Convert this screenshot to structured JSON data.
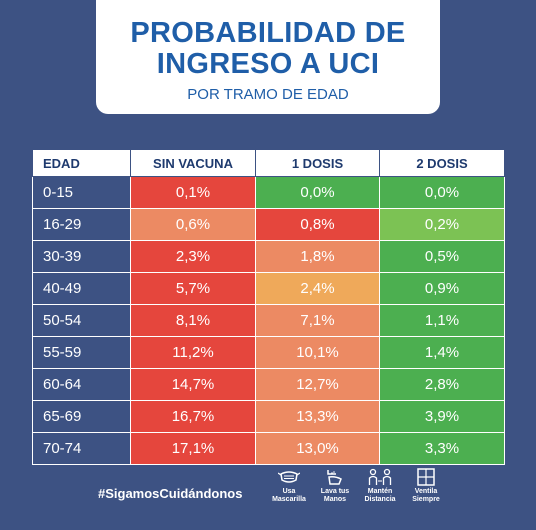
{
  "header": {
    "title_line1": "PROBABILIDAD DE",
    "title_line2": "INGRESO A UCI",
    "subtitle": "POR TRAMO DE EDAD"
  },
  "table": {
    "headers": [
      "EDAD",
      "SIN VACUNA",
      "1 DOSIS",
      "2 DOSIS"
    ],
    "rows": [
      {
        "age": "0-15",
        "cells": [
          {
            "value": "0,1%",
            "color": "#e5463d"
          },
          {
            "value": "0,0%",
            "color": "#4caf50"
          },
          {
            "value": "0,0%",
            "color": "#4caf50"
          }
        ]
      },
      {
        "age": "16-29",
        "cells": [
          {
            "value": "0,6%",
            "color": "#ec8a63"
          },
          {
            "value": "0,8%",
            "color": "#e5463d"
          },
          {
            "value": "0,2%",
            "color": "#7cc254"
          }
        ]
      },
      {
        "age": "30-39",
        "cells": [
          {
            "value": "2,3%",
            "color": "#e5463d"
          },
          {
            "value": "1,8%",
            "color": "#ec8a63"
          },
          {
            "value": "0,5%",
            "color": "#4caf50"
          }
        ]
      },
      {
        "age": "40-49",
        "cells": [
          {
            "value": "5,7%",
            "color": "#e5463d"
          },
          {
            "value": "2,4%",
            "color": "#efa95a"
          },
          {
            "value": "0,9%",
            "color": "#4caf50"
          }
        ]
      },
      {
        "age": "50-54",
        "cells": [
          {
            "value": "8,1%",
            "color": "#e5463d"
          },
          {
            "value": "7,1%",
            "color": "#ec8a63"
          },
          {
            "value": "1,1%",
            "color": "#4caf50"
          }
        ]
      },
      {
        "age": "55-59",
        "cells": [
          {
            "value": "11,2%",
            "color": "#e5463d"
          },
          {
            "value": "10,1%",
            "color": "#ec8a63"
          },
          {
            "value": "1,4%",
            "color": "#4caf50"
          }
        ]
      },
      {
        "age": "60-64",
        "cells": [
          {
            "value": "14,7%",
            "color": "#e5463d"
          },
          {
            "value": "12,7%",
            "color": "#ec8a63"
          },
          {
            "value": "2,8%",
            "color": "#4caf50"
          }
        ]
      },
      {
        "age": "65-69",
        "cells": [
          {
            "value": "16,7%",
            "color": "#e5463d"
          },
          {
            "value": "13,3%",
            "color": "#ec8a63"
          },
          {
            "value": "3,9%",
            "color": "#4caf50"
          }
        ]
      },
      {
        "age": "70-74",
        "cells": [
          {
            "value": "17,1%",
            "color": "#e5463d"
          },
          {
            "value": "13,0%",
            "color": "#ec8a63"
          },
          {
            "value": "3,3%",
            "color": "#4caf50"
          }
        ]
      }
    ]
  },
  "footer": {
    "hashtag": "#SigamosCuidándonos",
    "icons": [
      {
        "name": "mask-icon",
        "label_line1": "Usa",
        "label_line2": "Mascarilla"
      },
      {
        "name": "hand-wash-icon",
        "label_line1": "Lava tus",
        "label_line2": "Manos"
      },
      {
        "name": "distance-icon",
        "label_line1": "Mantén",
        "label_line2": "Distancia"
      },
      {
        "name": "window-icon",
        "label_line1": "Ventila",
        "label_line2": "Siempre"
      }
    ]
  },
  "colors": {
    "background": "#3d5283",
    "title": "#1f5ea8",
    "red": "#e5463d",
    "salmon": "#ec8a63",
    "orange": "#efa95a",
    "light_green": "#7cc254",
    "green": "#4caf50"
  }
}
